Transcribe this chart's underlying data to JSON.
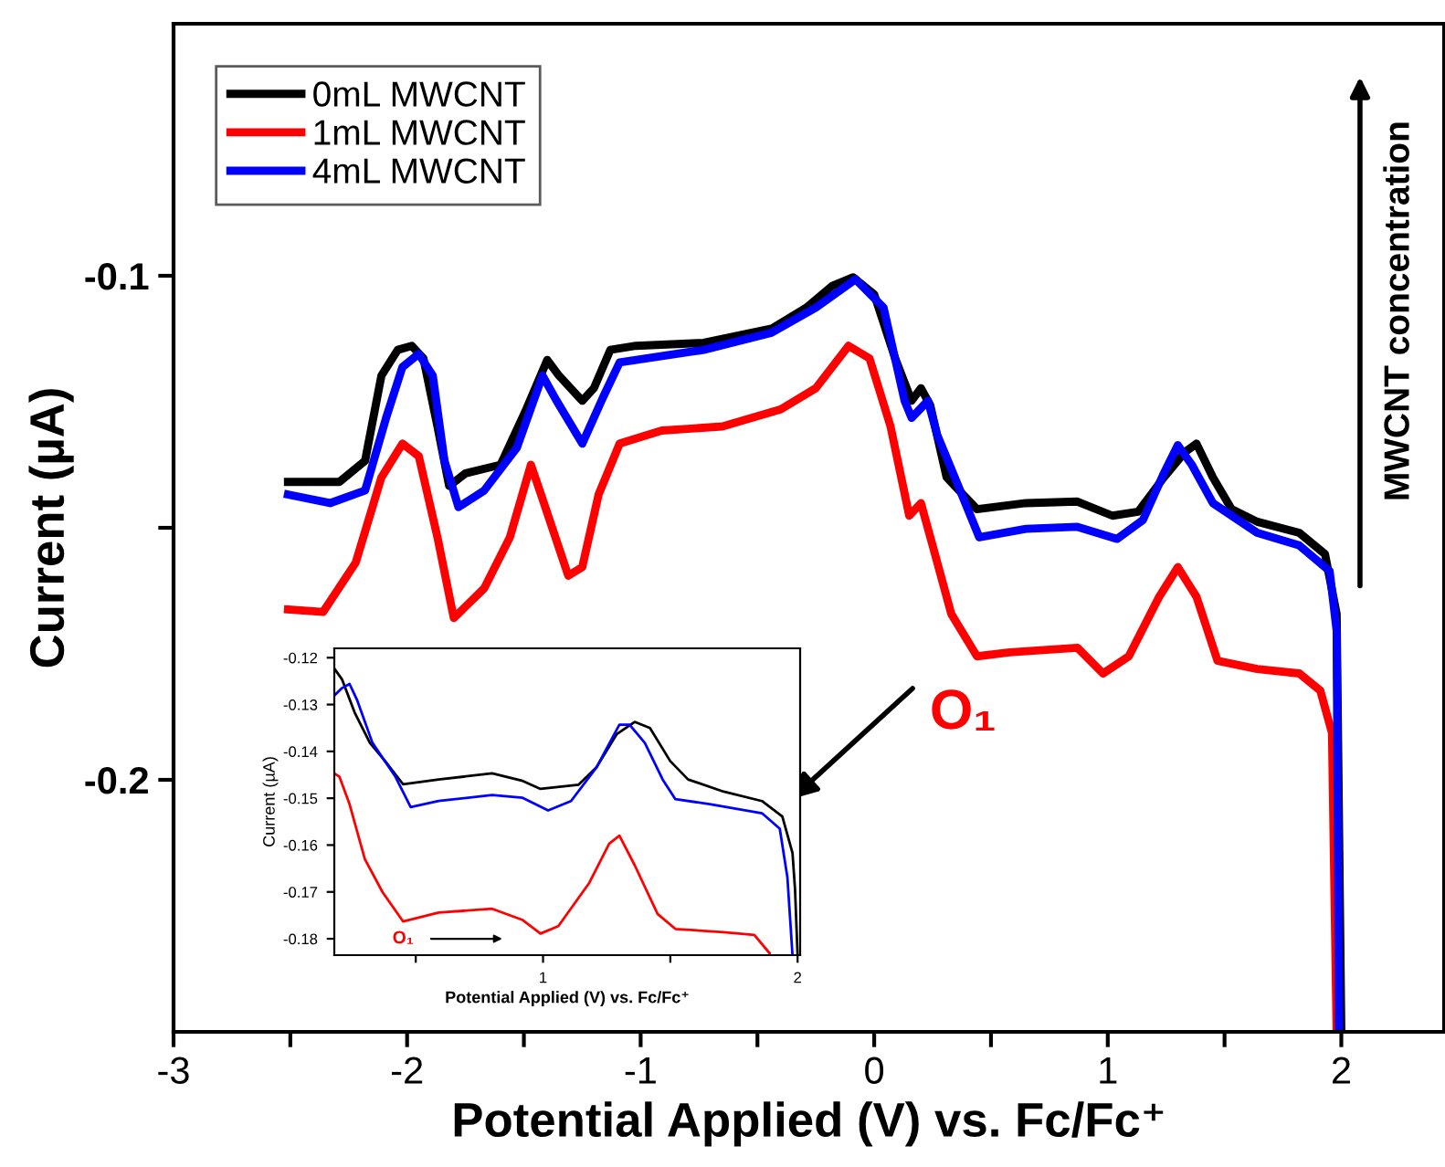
{
  "chart_data": [
    {
      "type": "line",
      "xlabel": "Potential Applied (V) vs. Fc/Fc⁺",
      "ylabel": "Current (µA)",
      "xlim": [
        -3,
        2.44
      ],
      "ylim": [
        -0.25,
        -0.05
      ],
      "xticks": [
        -3,
        {
          "value": -2.5,
          "label": null
        },
        -2,
        {
          "value": -1.5,
          "label": null
        },
        -1,
        {
          "value": -0.5,
          "label": null
        },
        0,
        {
          "value": 0.5,
          "label": null
        },
        1,
        {
          "value": 1.5,
          "label": null
        },
        2
      ],
      "yticks": [
        {
          "value": -0.2,
          "label": "-0.2"
        },
        {
          "value": -0.15,
          "label": null
        },
        {
          "value": -0.1,
          "label": "-0.1"
        }
      ],
      "legend": "top left",
      "grid": false,
      "annotations": [
        "O₁",
        "MWCNT concentration"
      ],
      "series": [
        {
          "name": "0mL MWCNT",
          "color": "#000000",
          "x": [
            -2.51,
            -2.29,
            -2.18,
            -2.11,
            -2.04,
            -1.98,
            -1.93,
            -1.87,
            -1.82,
            -1.75,
            -1.6,
            -1.49,
            -1.4,
            -1.35,
            -1.25,
            -1.2,
            -1.13,
            -1.02,
            -0.73,
            -0.44,
            -0.29,
            -0.18,
            -0.09,
            0.0,
            0.09,
            0.16,
            0.2,
            0.24,
            0.31,
            0.44,
            0.65,
            0.87,
            1.02,
            1.13,
            1.24,
            1.33,
            1.38,
            1.45,
            1.53,
            1.64,
            1.82,
            1.93,
            1.98,
            2.0
          ],
          "values": [
            -0.1409,
            -0.1409,
            -0.1367,
            -0.1198,
            -0.1147,
            -0.1139,
            -0.1164,
            -0.1299,
            -0.1417,
            -0.1392,
            -0.1375,
            -0.1265,
            -0.1167,
            -0.1198,
            -0.1248,
            -0.1223,
            -0.1147,
            -0.1139,
            -0.1133,
            -0.1105,
            -0.1063,
            -0.102,
            -0.1003,
            -0.1037,
            -0.1164,
            -0.1248,
            -0.1223,
            -0.1257,
            -0.14,
            -0.1463,
            -0.1451,
            -0.1448,
            -0.1476,
            -0.1468,
            -0.14,
            -0.135,
            -0.1333,
            -0.14,
            -0.1463,
            -0.1488,
            -0.151,
            -0.1552,
            -0.1671,
            -0.25
          ]
        },
        {
          "name": "1mL MWCNT",
          "color": "#ff0000",
          "x": [
            -2.51,
            -2.36,
            -2.22,
            -2.11,
            -2.02,
            -1.95,
            -1.87,
            -1.8,
            -1.67,
            -1.56,
            -1.47,
            -1.42,
            -1.31,
            -1.25,
            -1.18,
            -1.09,
            -0.91,
            -0.65,
            -0.4,
            -0.25,
            -0.11,
            -0.02,
            0.07,
            0.15,
            0.2,
            0.25,
            0.33,
            0.44,
            0.58,
            0.87,
            0.98,
            1.09,
            1.22,
            1.3,
            1.38,
            1.47,
            1.64,
            1.82,
            1.91,
            1.96,
            1.98
          ],
          "values": [
            -0.1662,
            -0.1667,
            -0.1569,
            -0.14,
            -0.1333,
            -0.1358,
            -0.1519,
            -0.1679,
            -0.162,
            -0.1519,
            -0.1375,
            -0.1443,
            -0.1595,
            -0.1578,
            -0.1434,
            -0.1333,
            -0.1307,
            -0.1299,
            -0.1265,
            -0.1223,
            -0.1139,
            -0.1164,
            -0.1299,
            -0.1476,
            -0.1451,
            -0.1535,
            -0.1671,
            -0.1755,
            -0.1747,
            -0.1738,
            -0.1789,
            -0.1755,
            -0.1637,
            -0.1578,
            -0.1637,
            -0.1764,
            -0.178,
            -0.1789,
            -0.1823,
            -0.1907,
            -0.25
          ]
        },
        {
          "name": "4mL MWCNT",
          "color": "#0000ff",
          "x": [
            -2.51,
            -2.33,
            -2.18,
            -2.09,
            -2.02,
            -1.95,
            -1.89,
            -1.84,
            -1.78,
            -1.67,
            -1.53,
            -1.42,
            -1.36,
            -1.25,
            -1.16,
            -1.09,
            -0.73,
            -0.44,
            -0.25,
            -0.08,
            0.04,
            0.13,
            0.16,
            0.23,
            0.27,
            0.36,
            0.45,
            0.65,
            0.87,
            1.04,
            1.15,
            1.24,
            1.3,
            1.36,
            1.45,
            1.64,
            1.82,
            1.95,
            1.98,
            1.99
          ],
          "values": [
            -0.1434,
            -0.1451,
            -0.1426,
            -0.1282,
            -0.1181,
            -0.1155,
            -0.1198,
            -0.1367,
            -0.1459,
            -0.1426,
            -0.1341,
            -0.1198,
            -0.1248,
            -0.1333,
            -0.124,
            -0.1172,
            -0.1147,
            -0.1113,
            -0.1063,
            -0.1007,
            -0.1063,
            -0.1248,
            -0.1282,
            -0.1248,
            -0.1316,
            -0.1417,
            -0.1519,
            -0.1502,
            -0.1498,
            -0.1522,
            -0.1485,
            -0.1392,
            -0.1336,
            -0.1375,
            -0.1451,
            -0.151,
            -0.1535,
            -0.1586,
            -0.1704,
            -0.25
          ]
        }
      ]
    },
    {
      "type": "line",
      "xlabel": "Potential Applied (V) vs. Fc/Fc⁺",
      "ylabel": "Current (µA)",
      "xlim": [
        0.18,
        2.01
      ],
      "ylim": [
        -0.1835,
        -0.118
      ],
      "xticks": [
        {
          "value": 0.5,
          "label": null
        },
        1,
        {
          "value": 1.5,
          "label": null
        },
        2
      ],
      "yticks": [
        -0.18,
        -0.17,
        -0.16,
        -0.15,
        -0.14,
        -0.13,
        -0.12
      ],
      "grid": false,
      "annotations": [
        "O₁"
      ],
      "series": [
        {
          "color": "#000000",
          "x": [
            0.18,
            0.21,
            0.26,
            0.32,
            0.38,
            0.45,
            0.59,
            0.8,
            0.92,
            0.99,
            1.14,
            1.21,
            1.29,
            1.36,
            1.42,
            1.5,
            1.57,
            1.71,
            1.86,
            1.94,
            1.98,
            1.99,
            2.0
          ],
          "values": [
            -0.1223,
            -0.1246,
            -0.1317,
            -0.1382,
            -0.1421,
            -0.147,
            -0.146,
            -0.1447,
            -0.1463,
            -0.148,
            -0.1471,
            -0.1434,
            -0.1363,
            -0.1337,
            -0.135,
            -0.1421,
            -0.146,
            -0.1486,
            -0.1506,
            -0.1539,
            -0.1617,
            -0.1695,
            -0.1835
          ]
        },
        {
          "color": "#ff0000",
          "x": [
            0.18,
            0.2,
            0.24,
            0.3,
            0.37,
            0.45,
            0.59,
            0.8,
            0.92,
            0.99,
            1.06,
            1.18,
            1.26,
            1.3,
            1.36,
            1.45,
            1.52,
            1.71,
            1.83,
            1.89
          ],
          "values": [
            -0.1447,
            -0.1454,
            -0.1513,
            -0.163,
            -0.1701,
            -0.1763,
            -0.1744,
            -0.1736,
            -0.176,
            -0.1789,
            -0.1773,
            -0.1682,
            -0.1597,
            -0.158,
            -0.1643,
            -0.1747,
            -0.1779,
            -0.1786,
            -0.1792,
            -0.1831
          ]
        },
        {
          "color": "#0000ff",
          "x": [
            0.18,
            0.21,
            0.24,
            0.27,
            0.33,
            0.42,
            0.48,
            0.59,
            0.8,
            0.92,
            1.02,
            1.11,
            1.21,
            1.3,
            1.34,
            1.4,
            1.47,
            1.52,
            1.66,
            1.86,
            1.93,
            1.96,
            1.98
          ],
          "values": [
            -0.1281,
            -0.1265,
            -0.1256,
            -0.1291,
            -0.1382,
            -0.1454,
            -0.1519,
            -0.1506,
            -0.1493,
            -0.1499,
            -0.1526,
            -0.1506,
            -0.1434,
            -0.1343,
            -0.1343,
            -0.1382,
            -0.146,
            -0.1502,
            -0.1513,
            -0.1532,
            -0.1565,
            -0.1669,
            -0.1835
          ]
        }
      ]
    }
  ]
}
